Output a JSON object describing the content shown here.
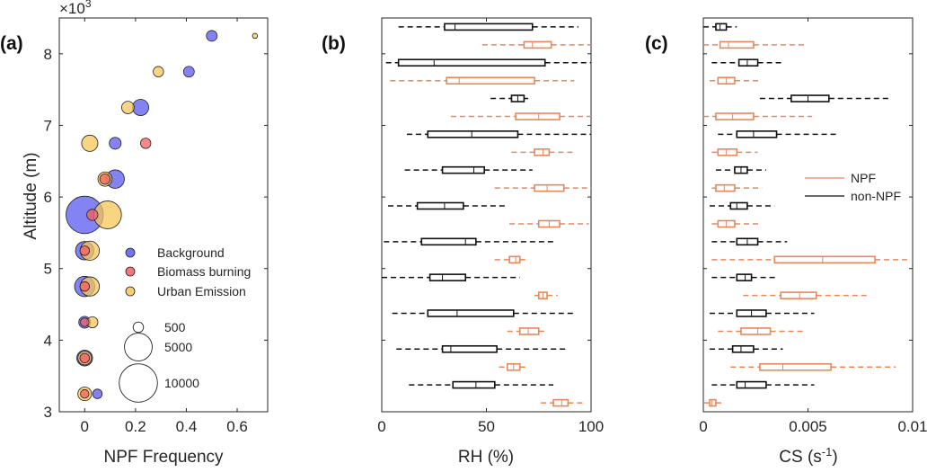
{
  "colors": {
    "background": "#5a5af0",
    "biomass": "#f26060",
    "urban": "#f5c55a",
    "npf_box": "#e8875a",
    "non_npf_box": "#111111",
    "axis": "#262626"
  },
  "chart_data": [
    {
      "id": "a",
      "type": "scatter",
      "panel_label": "(a)",
      "xlabel": "NPF Frequency",
      "ylabel": "Altitude (m)",
      "y_exponent": "×10",
      "y_exponent_power": "3",
      "xlim": [
        -0.1,
        0.72
      ],
      "ylim": [
        3000,
        8500
      ],
      "xticks": [
        0,
        0.2,
        0.4,
        0.6
      ],
      "xtick_labels": [
        "0",
        "0.2",
        "0.4",
        "0.6"
      ],
      "yticks": [
        3000,
        4000,
        5000,
        6000,
        7000,
        8000
      ],
      "ytick_labels": [
        "3",
        "4",
        "5",
        "6",
        "7",
        "8"
      ],
      "legend": {
        "placement": "right-middle",
        "series": [
          "Background",
          "Biomass burning",
          "Urban Emission"
        ],
        "sizes": [
          500,
          5000,
          10000
        ],
        "size_labels": [
          "500",
          "5000",
          "10000"
        ]
      },
      "series": [
        {
          "name": "Background",
          "color_key": "background",
          "points": [
            {
              "x": 0.5,
              "y": 8250,
              "size": 550
            },
            {
              "x": 0.41,
              "y": 7750,
              "size": 550
            },
            {
              "x": 0.22,
              "y": 7250,
              "size": 1500
            },
            {
              "x": 0.12,
              "y": 6750,
              "size": 700
            },
            {
              "x": 0.12,
              "y": 6250,
              "size": 2000
            },
            {
              "x": 0.0,
              "y": 5750,
              "size": 9500
            },
            {
              "x": 0.0,
              "y": 5250,
              "size": 2000
            },
            {
              "x": 0.0,
              "y": 4750,
              "size": 2500
            },
            {
              "x": 0.0,
              "y": 4250,
              "size": 700
            },
            {
              "x": 0.0,
              "y": 3750,
              "size": 1400
            },
            {
              "x": 0.05,
              "y": 3250,
              "size": 400
            }
          ]
        },
        {
          "name": "Biomass burning",
          "color_key": "biomass",
          "points": [
            {
              "x": 0.24,
              "y": 6750,
              "size": 500
            },
            {
              "x": 0.08,
              "y": 6250,
              "size": 500
            },
            {
              "x": 0.03,
              "y": 5750,
              "size": 600
            },
            {
              "x": 0.0,
              "y": 5250,
              "size": 400
            },
            {
              "x": 0.0,
              "y": 4750,
              "size": 400
            },
            {
              "x": 0.0,
              "y": 4250,
              "size": 300
            },
            {
              "x": 0.0,
              "y": 3750,
              "size": 400
            },
            {
              "x": 0.0,
              "y": 3250,
              "size": 300
            }
          ]
        },
        {
          "name": "Urban Emission",
          "color_key": "urban",
          "points": [
            {
              "x": 0.67,
              "y": 8250,
              "size": 60
            },
            {
              "x": 0.29,
              "y": 7750,
              "size": 500
            },
            {
              "x": 0.17,
              "y": 7250,
              "size": 800
            },
            {
              "x": 0.02,
              "y": 6750,
              "size": 1500
            },
            {
              "x": 0.08,
              "y": 6250,
              "size": 1100
            },
            {
              "x": 0.09,
              "y": 5750,
              "size": 5000
            },
            {
              "x": 0.02,
              "y": 5250,
              "size": 2200
            },
            {
              "x": 0.02,
              "y": 4750,
              "size": 2200
            },
            {
              "x": 0.03,
              "y": 4250,
              "size": 600
            },
            {
              "x": 0.0,
              "y": 3750,
              "size": 1000
            },
            {
              "x": 0.0,
              "y": 3250,
              "size": 1000
            }
          ]
        }
      ]
    },
    {
      "id": "b",
      "type": "boxplot",
      "panel_label": "(b)",
      "xlabel": "RH (%)",
      "xlim": [
        0,
        100
      ],
      "xticks": [
        0,
        50,
        100
      ],
      "xtick_labels": [
        "0",
        "50",
        "100"
      ],
      "levels": [
        8250,
        7750,
        7250,
        6750,
        6250,
        5750,
        5250,
        4750,
        4250,
        3750,
        3250
      ],
      "non_npf": [
        {
          "wmin": 8,
          "q1": 30,
          "med": 35,
          "q3": 72,
          "wmax": 94
        },
        {
          "wmin": 2,
          "q1": 8,
          "med": 25,
          "q3": 78,
          "wmax": 100
        },
        {
          "wmin": 52,
          "q1": 62,
          "med": 65,
          "q3": 68,
          "wmax": 70
        },
        {
          "wmin": 12,
          "q1": 22,
          "med": 43,
          "q3": 65,
          "wmax": 100
        },
        {
          "wmin": 11,
          "q1": 29,
          "med": 44,
          "q3": 49,
          "wmax": 72
        },
        {
          "wmin": 3,
          "q1": 17,
          "med": 30,
          "q3": 39,
          "wmax": 60
        },
        {
          "wmin": 1,
          "q1": 19,
          "med": 40,
          "q3": 45,
          "wmax": 83
        },
        {
          "wmin": 0,
          "q1": 23,
          "med": 29,
          "q3": 40,
          "wmax": 66
        },
        {
          "wmin": 5,
          "q1": 22,
          "med": 36,
          "q3": 63,
          "wmax": 93
        },
        {
          "wmin": 7,
          "q1": 29,
          "med": 33,
          "q3": 55,
          "wmax": 88
        },
        {
          "wmin": 13,
          "q1": 34,
          "med": 45,
          "q3": 54,
          "wmax": 82
        }
      ],
      "npf": [
        {
          "wmin": 48,
          "q1": 68,
          "med": 72,
          "q3": 81,
          "wmax": 100
        },
        {
          "wmin": 4,
          "q1": 31,
          "med": 37,
          "q3": 73,
          "wmax": 92
        },
        {
          "wmin": 33,
          "q1": 64,
          "med": 75,
          "q3": 85,
          "wmax": 100
        },
        {
          "wmin": 62,
          "q1": 73,
          "med": 77,
          "q3": 80,
          "wmax": 92
        },
        {
          "wmin": 54,
          "q1": 73,
          "med": 79,
          "q3": 87,
          "wmax": 100
        },
        {
          "wmin": 61,
          "q1": 75,
          "med": 80,
          "q3": 85,
          "wmax": 99
        },
        {
          "wmin": 54,
          "q1": 61,
          "med": 64,
          "q3": 66,
          "wmax": 70
        },
        {
          "wmin": 73,
          "q1": 75,
          "med": 77,
          "q3": 79,
          "wmax": 84
        },
        {
          "wmin": 60,
          "q1": 66,
          "med": 70,
          "q3": 75,
          "wmax": 79
        },
        {
          "wmin": 56,
          "q1": 60,
          "med": 63,
          "q3": 66,
          "wmax": 69
        },
        {
          "wmin": 76,
          "q1": 82,
          "med": 86,
          "q3": 89,
          "wmax": 96
        }
      ]
    },
    {
      "id": "c",
      "type": "boxplot",
      "panel_label": "(c)",
      "xlabel": "CS (s",
      "xlabel_sup": "-1",
      "xlabel_end": ")",
      "xlim": [
        0,
        0.01
      ],
      "xticks": [
        0,
        0.005,
        0.01
      ],
      "xtick_labels": [
        "0",
        "0.005",
        "0.01"
      ],
      "levels": [
        8250,
        7750,
        7250,
        6750,
        6250,
        5750,
        5250,
        4750,
        4250,
        3750,
        3250
      ],
      "legend": {
        "placement": "right-middle",
        "entries": [
          "NPF",
          "non-NPF"
        ]
      },
      "non_npf": [
        {
          "wmin": 0.0,
          "q1": 0.0006,
          "med": 0.0008,
          "q3": 0.0011,
          "wmax": 0.0016
        },
        {
          "wmin": 0.0004,
          "q1": 0.0017,
          "med": 0.0021,
          "q3": 0.0026,
          "wmax": 0.0038
        },
        {
          "wmin": 0.0027,
          "q1": 0.0042,
          "med": 0.005,
          "q3": 0.006,
          "wmax": 0.0089
        },
        {
          "wmin": 0.0007,
          "q1": 0.0016,
          "med": 0.0024,
          "q3": 0.0035,
          "wmax": 0.0065
        },
        {
          "wmin": 0.0006,
          "q1": 0.0015,
          "med": 0.0018,
          "q3": 0.0021,
          "wmax": 0.003
        },
        {
          "wmin": 0.0003,
          "q1": 0.0013,
          "med": 0.0016,
          "q3": 0.0021,
          "wmax": 0.0034
        },
        {
          "wmin": 0.0004,
          "q1": 0.0016,
          "med": 0.0021,
          "q3": 0.0026,
          "wmax": 0.004
        },
        {
          "wmin": 0.0004,
          "q1": 0.0016,
          "med": 0.002,
          "q3": 0.0023,
          "wmax": 0.0035
        },
        {
          "wmin": 0.0003,
          "q1": 0.0016,
          "med": 0.0023,
          "q3": 0.003,
          "wmax": 0.0053
        },
        {
          "wmin": 0.0003,
          "q1": 0.0014,
          "med": 0.0018,
          "q3": 0.0024,
          "wmax": 0.0038
        },
        {
          "wmin": 0.0004,
          "q1": 0.0016,
          "med": 0.002,
          "q3": 0.003,
          "wmax": 0.0053
        }
      ],
      "npf": [
        {
          "wmin": 0.0,
          "q1": 0.0008,
          "med": 0.0012,
          "q3": 0.0024,
          "wmax": 0.0049
        },
        {
          "wmin": 0.0003,
          "q1": 0.0007,
          "med": 0.0011,
          "q3": 0.0015,
          "wmax": 0.0027
        },
        {
          "wmin": 0.0,
          "q1": 0.0006,
          "med": 0.0014,
          "q3": 0.0024,
          "wmax": 0.0052
        },
        {
          "wmin": 0.0004,
          "q1": 0.0007,
          "med": 0.0011,
          "q3": 0.0016,
          "wmax": 0.0026
        },
        {
          "wmin": 0.0004,
          "q1": 0.0006,
          "med": 0.001,
          "q3": 0.0015,
          "wmax": 0.0028
        },
        {
          "wmin": 0.0004,
          "q1": 0.0007,
          "med": 0.0011,
          "q3": 0.0015,
          "wmax": 0.0027
        },
        {
          "wmin": 0.0004,
          "q1": 0.0034,
          "med": 0.0057,
          "q3": 0.0082,
          "wmax": 0.0099
        },
        {
          "wmin": 0.0019,
          "q1": 0.0037,
          "med": 0.0046,
          "q3": 0.0054,
          "wmax": 0.0078
        },
        {
          "wmin": 0.0007,
          "q1": 0.0018,
          "med": 0.0026,
          "q3": 0.0032,
          "wmax": 0.0048
        },
        {
          "wmin": 0.0013,
          "q1": 0.0027,
          "med": 0.0038,
          "q3": 0.0061,
          "wmax": 0.0092
        },
        {
          "wmin": 0.0,
          "q1": 0.0003,
          "med": 0.0004,
          "q3": 0.0006,
          "wmax": 0.0009
        }
      ]
    }
  ]
}
